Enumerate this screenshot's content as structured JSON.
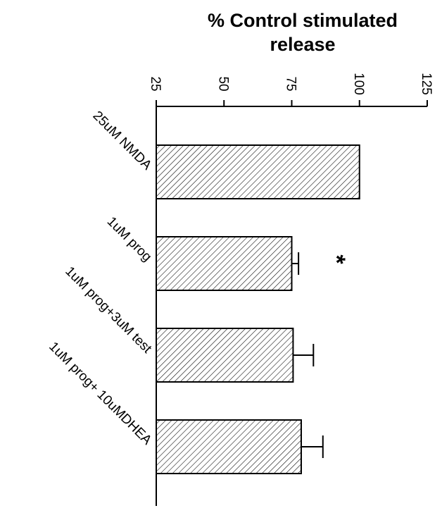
{
  "chart_data": {
    "type": "bar",
    "orientation": "horizontal",
    "title": "% Control stimulated release",
    "xlabel": "% Control stimulated release",
    "xlim": [
      25,
      125
    ],
    "ticks": [
      25,
      50,
      75,
      100,
      125
    ],
    "tick_labels": [
      "25",
      "50",
      "75",
      "100",
      "125"
    ],
    "categories": [
      "25uM NMDA",
      "1uM prog",
      "1uM prog+3uM test",
      "1uM prog+ 10uMDHEA"
    ],
    "values": [
      100,
      75,
      75.5,
      78.5
    ],
    "errors": [
      0,
      2.5,
      7.5,
      8
    ],
    "annotations": [
      {
        "category": "1uM prog",
        "text": "*"
      }
    ],
    "bar_fill": "diagonal-hatch",
    "colors": {
      "stroke": "#000000",
      "fill": "#ffffff"
    },
    "grid": false,
    "legend": "none"
  }
}
